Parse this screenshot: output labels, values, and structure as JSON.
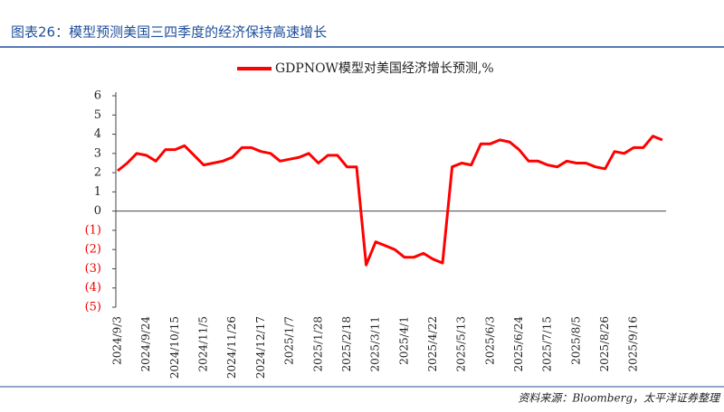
{
  "header": {
    "title": "图表26：模型预测美国三四季度的经济保持高速增长"
  },
  "chart_data": {
    "type": "line",
    "categories": [
      "2024/9/3",
      null,
      null,
      "2024/9/24",
      null,
      null,
      "2024/10/15",
      null,
      null,
      "2024/11/5",
      null,
      null,
      "2024/11/26",
      null,
      null,
      "2024/12/17",
      null,
      null,
      "2025/1/7",
      null,
      null,
      "2025/1/28",
      null,
      null,
      "2025/2/18",
      null,
      null,
      "2025/3/11",
      null,
      null,
      "2025/4/1",
      null,
      null,
      "2025/4/22",
      null,
      null,
      "2025/5/13",
      null,
      null,
      "2025/6/3",
      null,
      null,
      "2025/6/24",
      null,
      null,
      "2025/7/15",
      null,
      null,
      "2025/8/5",
      null,
      null,
      "2025/8/26",
      null,
      null,
      "2025/9/16",
      null,
      null,
      null
    ],
    "series": [
      {
        "name": "GDPNOW模型对美国经济增长预测,%",
        "color": "#ff0000",
        "values": [
          2.1,
          2.5,
          3.0,
          2.9,
          2.6,
          3.2,
          3.2,
          3.4,
          2.9,
          2.4,
          2.5,
          2.6,
          2.8,
          3.3,
          3.3,
          3.1,
          3.0,
          2.6,
          2.7,
          2.8,
          3.0,
          2.5,
          2.9,
          2.9,
          2.3,
          2.3,
          -2.8,
          -1.6,
          -1.8,
          -2.0,
          -2.4,
          -2.4,
          -2.2,
          -2.5,
          -2.7,
          2.3,
          2.5,
          2.4,
          3.5,
          3.5,
          3.7,
          3.6,
          3.2,
          2.6,
          2.6,
          2.4,
          2.3,
          2.6,
          2.5,
          2.5,
          2.3,
          2.2,
          3.1,
          3.0,
          3.3,
          3.3,
          3.9,
          3.7
        ]
      }
    ],
    "ylim": [
      -5,
      6
    ],
    "yticks": [
      {
        "value": -5,
        "label": "(5)"
      },
      {
        "value": -4,
        "label": "(4)"
      },
      {
        "value": -3,
        "label": "(3)"
      },
      {
        "value": -2,
        "label": "(2)"
      },
      {
        "value": -1,
        "label": "(1)"
      },
      0,
      1,
      2,
      3,
      4,
      5,
      6
    ],
    "legend": "top"
  },
  "source": "资料来源：Bloomberg，太平洋证券整理"
}
